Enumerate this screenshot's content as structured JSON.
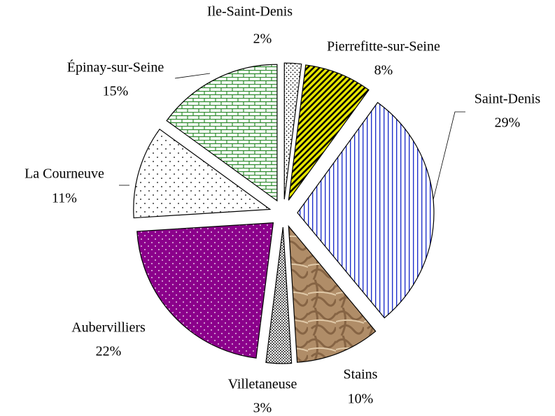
{
  "chart_data": {
    "type": "pie",
    "categories": [
      "Ile-Saint-Denis",
      "Pierrefitte-sur-Seine",
      "Saint-Denis",
      "Stains",
      "Villetaneuse",
      "Aubervilliers",
      "La Courneuve",
      "Épinay-sur-Seine"
    ],
    "values": [
      2,
      8,
      29,
      10,
      3,
      22,
      11,
      15
    ],
    "value_labels": [
      "2%",
      "8%",
      "29%",
      "10%",
      "3%",
      "22%",
      "11%",
      "15%"
    ],
    "colors": [
      "#ffffff",
      "#e6e600",
      "#ffffff",
      "#b08d68",
      "#ffffff",
      "#8b008b",
      "#ffffff",
      "#ffffff"
    ]
  }
}
